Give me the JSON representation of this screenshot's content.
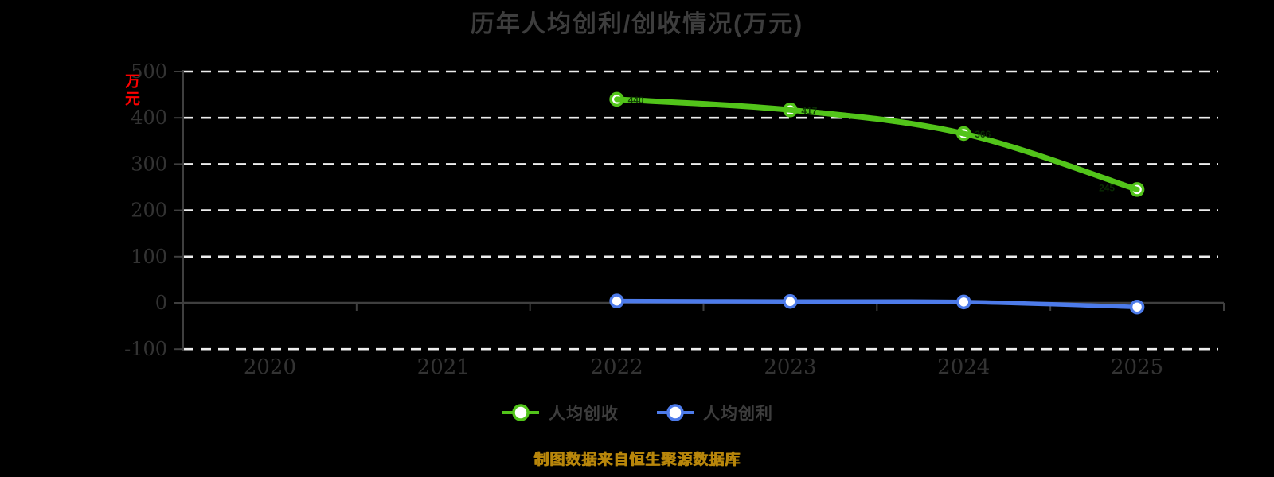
{
  "title": "历年人均创利/创收情况(万元)",
  "footnote": "制图数据来自恒生聚源数据库",
  "y_axis": {
    "unit_label": "万元"
  },
  "legend": {
    "items": [
      "人均创收",
      "人均创利"
    ]
  },
  "colors": {
    "background": "#000000",
    "title_text": "#3d3d3d",
    "axis_tick_text": "#333333",
    "axis_line": "#3f3f3f",
    "gridline": "#ededed",
    "unit_label": "#ff0000",
    "footnote_text": "#b8860b",
    "legend_text": "#3d3d3d",
    "marker_fill": "#ffffff",
    "value_label": "#0a3004"
  },
  "chart_data": {
    "type": "line",
    "title": "历年人均创利/创收情况(万元)",
    "xlabel": "",
    "ylabel": "万元",
    "categories": [
      "2020",
      "2021",
      "2022",
      "2023",
      "2024",
      "2025"
    ],
    "yticks": [
      500,
      400,
      300,
      200,
      100,
      0,
      -100
    ],
    "ylim": [
      -100,
      500
    ],
    "grid": "dashed-white-horizontal",
    "legend_position": "bottom",
    "series": [
      {
        "name": "人均创收",
        "color": "#52c41a",
        "x": [
          "2022",
          "2023",
          "2024",
          "2025"
        ],
        "values": [
          440,
          417,
          366,
          245
        ],
        "marker": "circle-white",
        "markers_under_line": true,
        "show_labels": true,
        "line_width": 7
      },
      {
        "name": "人均创利",
        "color": "#4d7bea",
        "x": [
          "2022",
          "2023",
          "2024",
          "2025"
        ],
        "values": [
          4,
          3,
          2,
          -9
        ],
        "marker": "circle-white",
        "markers_under_line": false,
        "show_labels": false,
        "line_width": 5.5
      }
    ]
  }
}
